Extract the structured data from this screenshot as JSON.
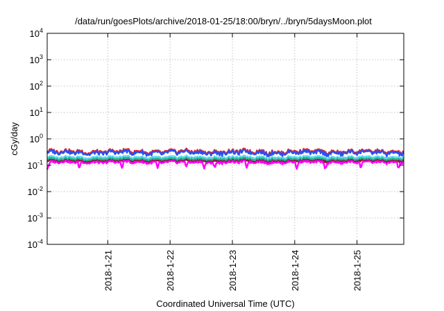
{
  "chart_data": {
    "type": "line",
    "title": "/data/run/goesPlots/archive/2018-01-25/18:00/bryn/../bryn/5daysMoon.plot",
    "xlabel": "Coordinated Universal Time (UTC)",
    "ylabel": "cGy/day",
    "yscale": "log",
    "ylim": [
      0.0001,
      10000
    ],
    "y_ticks": [
      {
        "value": 0.0001,
        "base": "10",
        "exp": "-4"
      },
      {
        "value": 0.001,
        "base": "10",
        "exp": "-3"
      },
      {
        "value": 0.01,
        "base": "10",
        "exp": "-2"
      },
      {
        "value": 0.1,
        "base": "10",
        "exp": "-1"
      },
      {
        "value": 1,
        "base": "10",
        "exp": "0"
      },
      {
        "value": 10,
        "base": "10",
        "exp": "1"
      },
      {
        "value": 100,
        "base": "10",
        "exp": "2"
      },
      {
        "value": 1000,
        "base": "10",
        "exp": "3"
      },
      {
        "value": 10000,
        "base": "10",
        "exp": "4"
      }
    ],
    "xlim": [
      "2018-01-20T00:40",
      "2018-01-25T18:00"
    ],
    "x_ticks": [
      {
        "value": "2018-01-21T00:00",
        "label": "2018-1-21"
      },
      {
        "value": "2018-01-22T00:00",
        "label": "2018-1-22"
      },
      {
        "value": "2018-01-23T00:00",
        "label": "2018-1-23"
      },
      {
        "value": "2018-01-24T00:00",
        "label": "2018-1-24"
      },
      {
        "value": "2018-01-25T00:00",
        "label": "2018-1-25"
      }
    ],
    "grid": true,
    "legend": "none",
    "series": [
      {
        "color": "#e8202a",
        "base": 0.33,
        "amp": 0.09,
        "dips": false
      },
      {
        "color": "#2a50f0",
        "base": 0.3,
        "amp": 0.08,
        "dips": false
      },
      {
        "color": "#5fd8f0",
        "base": 0.2,
        "amp": 0.03,
        "dips": false
      },
      {
        "color": "#1fb48a",
        "base": 0.17,
        "amp": 0.025,
        "dips": false
      },
      {
        "color": "#8a1a3a",
        "base": 0.145,
        "amp": 0.02,
        "dips": false
      },
      {
        "color": "#ff00ff",
        "base": 0.13,
        "amp": 0.02,
        "dips": true
      }
    ]
  }
}
